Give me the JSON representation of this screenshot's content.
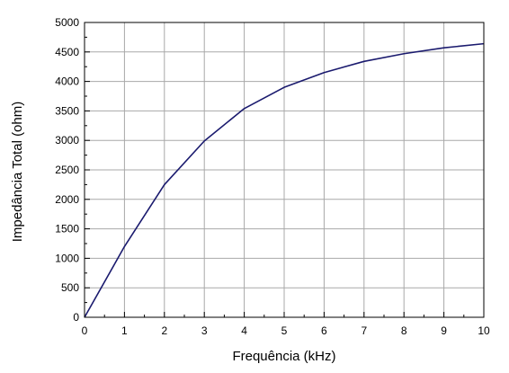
{
  "chart_data": {
    "type": "line",
    "title": "",
    "xlabel": "Frequência (kHz)",
    "ylabel": "Impedância Total (ohm)",
    "xlim": [
      0,
      10
    ],
    "ylim": [
      0,
      5000
    ],
    "xticks": [
      0,
      1,
      2,
      3,
      4,
      5,
      6,
      7,
      8,
      9,
      10
    ],
    "yticks": [
      0,
      500,
      1000,
      1500,
      2000,
      2500,
      3000,
      3500,
      4000,
      4500,
      5000
    ],
    "x_tick_labels": [
      "0",
      "1",
      "2",
      "3",
      "4",
      "5",
      "6",
      "7",
      "8",
      "9",
      "10"
    ],
    "y_tick_labels": [
      "0",
      "500",
      "1000",
      "1500",
      "2000",
      "2500",
      "3000",
      "3500",
      "4000",
      "4500",
      "5000"
    ],
    "grid": true,
    "legend": "none",
    "series": [
      {
        "color": "#1a1a6e",
        "x": [
          0,
          1,
          2,
          3,
          4,
          5,
          6,
          7,
          8,
          9,
          10
        ],
        "y": [
          0,
          1200,
          2250,
          2990,
          3540,
          3900,
          4150,
          4340,
          4470,
          4570,
          4640
        ]
      }
    ]
  }
}
